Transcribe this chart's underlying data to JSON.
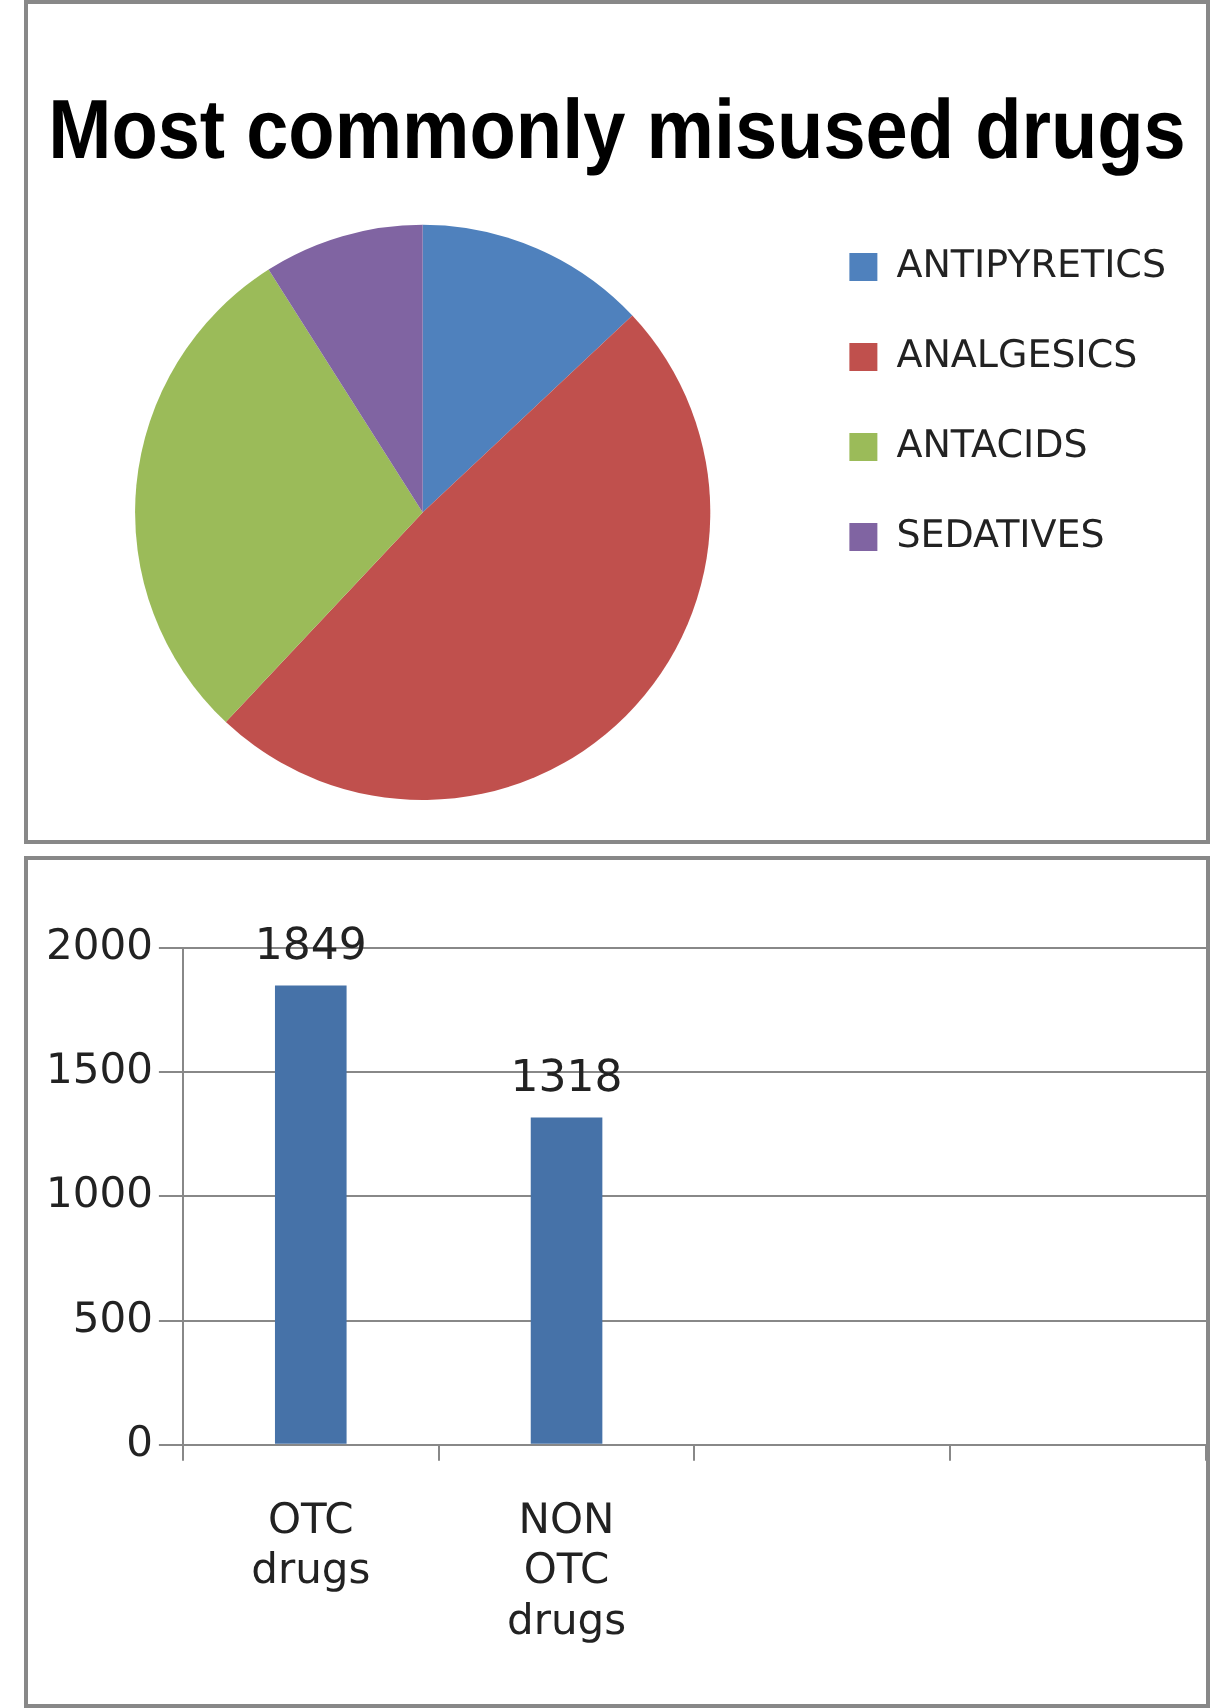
{
  "chart_data": [
    {
      "type": "pie",
      "title": "Most commonly misused drugs",
      "categories": [
        "ANTIPYRETICS",
        "ANALGESICS",
        "ANTACIDS",
        "SEDATIVES"
      ],
      "values": [
        13,
        49,
        29,
        9
      ],
      "colors": [
        "#4f81bd",
        "#c0504d",
        "#9bbb59",
        "#8064a2"
      ],
      "legend": "right"
    },
    {
      "type": "bar",
      "categories": [
        "OTC drugs",
        "NON OTC drugs",
        null,
        null
      ],
      "values": [
        1849,
        1318,
        null,
        null
      ],
      "color": "#4672a8",
      "ylim": [
        0,
        2000
      ],
      "yticks": [
        0,
        500,
        1000,
        1500,
        2000
      ],
      "grid": "y",
      "data_labels": true,
      "legend": false
    }
  ]
}
